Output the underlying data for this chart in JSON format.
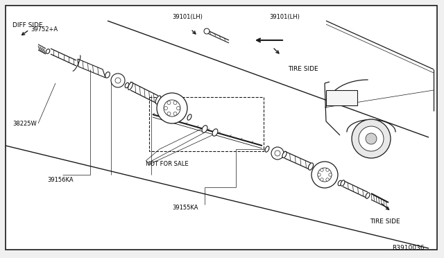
{
  "bg_color": "#f0f0f0",
  "border_color": "#000000",
  "line_color": "#1a1a1a",
  "text_color": "#000000",
  "diagram_ref": "R3910036",
  "labels": {
    "diff_side": "DIFF SIDE",
    "tire_side_upper": "TIRE SIDE",
    "tire_side_lower": "TIRE SIDE",
    "not_for_sale": "NOT FOR SALE",
    "part_39752": "39752+A",
    "part_38225": "38225W",
    "part_39156": "39156KA",
    "part_39155": "39155KA",
    "part_39101_lh1": "39101(LH)",
    "part_39101_lh2": "39101(LH)"
  }
}
